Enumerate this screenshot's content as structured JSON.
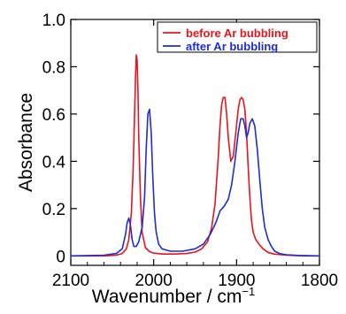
{
  "chart_data": {
    "type": "line",
    "xlabel": "Wavenumber / cm",
    "xlabel_superscript": "−1",
    "ylabel": "Absorbance",
    "xlim": [
      2100,
      1800
    ],
    "ylim": [
      -0.04,
      1.0
    ],
    "x_reversed": true,
    "xticks": [
      2100,
      2000,
      1900,
      1800
    ],
    "xtick_labels": [
      "2100",
      "2000",
      "1900",
      "1800"
    ],
    "yticks": [
      0,
      0.2,
      0.4,
      0.6,
      0.8,
      1.0
    ],
    "ytick_labels": [
      "0",
      "0.2",
      "0.4",
      "0.6",
      "0.8",
      "1.0"
    ],
    "grid": false,
    "legend_position": "top-right",
    "series": [
      {
        "name": "before Ar bubbling",
        "color": "#e8141c",
        "x": [
          2100,
          2060,
          2045,
          2038,
          2033,
          2030,
          2027,
          2025,
          2023,
          2022,
          2021,
          2020,
          2019,
          2018,
          2016,
          2014,
          2010,
          2005,
          2000,
          1990,
          1975,
          1960,
          1950,
          1942,
          1935,
          1930,
          1926,
          1922,
          1920,
          1918,
          1916,
          1914,
          1912,
          1910,
          1907,
          1904,
          1901,
          1898,
          1896,
          1894,
          1892,
          1890,
          1888,
          1886,
          1884,
          1882,
          1880,
          1877,
          1873,
          1868,
          1862,
          1855,
          1840,
          1820,
          1800
        ],
        "y": [
          0.0,
          0.0,
          0.003,
          0.01,
          0.03,
          0.07,
          0.18,
          0.35,
          0.6,
          0.75,
          0.85,
          0.83,
          0.7,
          0.5,
          0.25,
          0.1,
          0.035,
          0.018,
          0.012,
          0.008,
          0.008,
          0.01,
          0.016,
          0.03,
          0.06,
          0.12,
          0.22,
          0.42,
          0.55,
          0.64,
          0.67,
          0.67,
          0.6,
          0.5,
          0.4,
          0.42,
          0.52,
          0.62,
          0.66,
          0.67,
          0.66,
          0.62,
          0.52,
          0.38,
          0.25,
          0.15,
          0.1,
          0.07,
          0.05,
          0.03,
          0.015,
          0.008,
          0.003,
          0.0,
          0.0
        ]
      },
      {
        "name": "after Ar bubbling",
        "color": "#1c2cd6",
        "x": [
          2100,
          2060,
          2045,
          2038,
          2034,
          2032,
          2030,
          2028,
          2026,
          2024,
          2021,
          2018,
          2014,
          2011,
          2009,
          2007,
          2005,
          2003,
          2001,
          1999,
          1997,
          1994,
          1990,
          1980,
          1965,
          1950,
          1940,
          1932,
          1925,
          1920,
          1915,
          1910,
          1906,
          1902,
          1898,
          1895,
          1892,
          1890,
          1888,
          1886,
          1884,
          1881,
          1878,
          1875,
          1872,
          1869,
          1866,
          1862,
          1858,
          1854,
          1848,
          1840,
          1825,
          1800
        ],
        "y": [
          0.0,
          0.003,
          0.01,
          0.03,
          0.09,
          0.14,
          0.16,
          0.13,
          0.07,
          0.04,
          0.04,
          0.06,
          0.12,
          0.25,
          0.45,
          0.6,
          0.62,
          0.52,
          0.33,
          0.18,
          0.1,
          0.05,
          0.03,
          0.02,
          0.02,
          0.03,
          0.05,
          0.09,
          0.14,
          0.19,
          0.21,
          0.24,
          0.3,
          0.4,
          0.52,
          0.58,
          0.58,
          0.55,
          0.5,
          0.52,
          0.56,
          0.58,
          0.55,
          0.45,
          0.32,
          0.2,
          0.12,
          0.07,
          0.04,
          0.02,
          0.01,
          0.005,
          0.002,
          0.0
        ]
      }
    ]
  }
}
